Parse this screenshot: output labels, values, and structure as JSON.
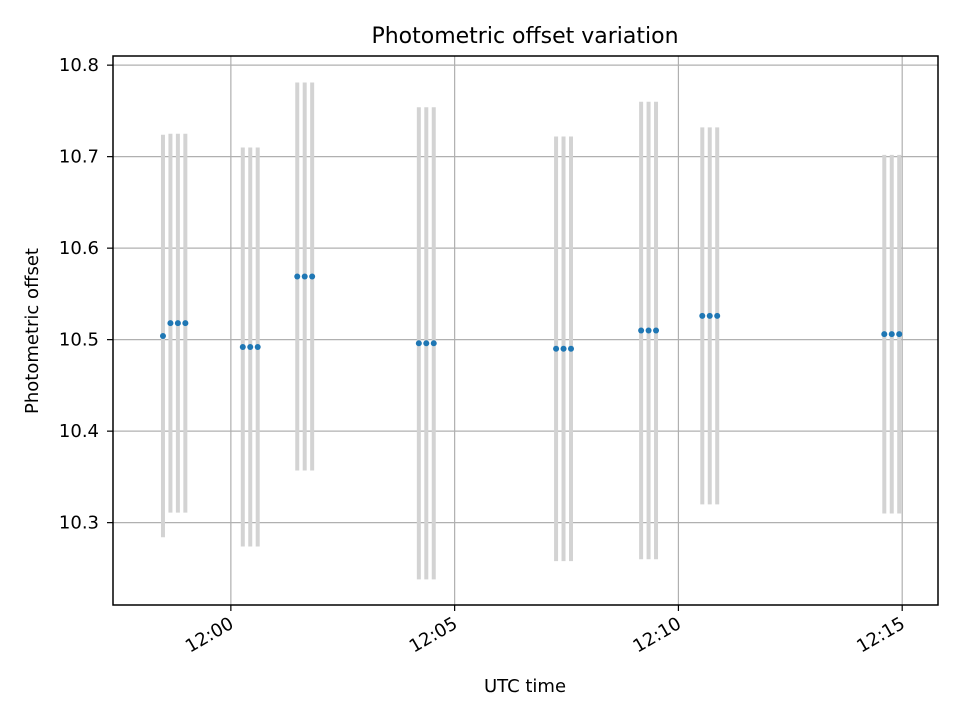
{
  "chart_data": {
    "type": "scatter",
    "title": "Photometric offset variation",
    "xlabel": "UTC time",
    "ylabel": "Photometric offset",
    "xlim": [
      "11:57:22",
      "12:15:48"
    ],
    "ylim": [
      10.21,
      10.81
    ],
    "xticks": [
      "12:00",
      "12:05",
      "12:10",
      "12:15"
    ],
    "yticks": [
      "10.3",
      "10.4",
      "10.5",
      "10.6",
      "10.7",
      "10.8"
    ],
    "grid": true,
    "point_color": "#1f77b4",
    "errorbar_color": "#d3d3d3",
    "points": [
      {
        "t": "11:58:29",
        "y": 10.504,
        "err": 0.22
      },
      {
        "t": "11:58:39",
        "y": 10.518,
        "err": 0.207
      },
      {
        "t": "11:58:49",
        "y": 10.518,
        "err": 0.207
      },
      {
        "t": "11:58:59",
        "y": 10.518,
        "err": 0.207
      },
      {
        "t": "12:00:16",
        "y": 10.492,
        "err": 0.218
      },
      {
        "t": "12:00:26",
        "y": 10.492,
        "err": 0.218
      },
      {
        "t": "12:00:36",
        "y": 10.492,
        "err": 0.218
      },
      {
        "t": "12:01:29",
        "y": 10.569,
        "err": 0.212
      },
      {
        "t": "12:01:39",
        "y": 10.569,
        "err": 0.212
      },
      {
        "t": "12:01:49",
        "y": 10.569,
        "err": 0.212
      },
      {
        "t": "12:04:12",
        "y": 10.496,
        "err": 0.258
      },
      {
        "t": "12:04:22",
        "y": 10.496,
        "err": 0.258
      },
      {
        "t": "12:04:32",
        "y": 10.496,
        "err": 0.258
      },
      {
        "t": "12:07:16",
        "y": 10.49,
        "err": 0.232
      },
      {
        "t": "12:07:26",
        "y": 10.49,
        "err": 0.232
      },
      {
        "t": "12:07:36",
        "y": 10.49,
        "err": 0.232
      },
      {
        "t": "12:09:10",
        "y": 10.51,
        "err": 0.25
      },
      {
        "t": "12:09:20",
        "y": 10.51,
        "err": 0.25
      },
      {
        "t": "12:09:30",
        "y": 10.51,
        "err": 0.25
      },
      {
        "t": "12:10:32",
        "y": 10.526,
        "err": 0.206
      },
      {
        "t": "12:10:42",
        "y": 10.526,
        "err": 0.206
      },
      {
        "t": "12:10:52",
        "y": 10.526,
        "err": 0.206
      },
      {
        "t": "12:14:36",
        "y": 10.506,
        "err": 0.196
      },
      {
        "t": "12:14:46",
        "y": 10.506,
        "err": 0.196
      },
      {
        "t": "12:14:56",
        "y": 10.506,
        "err": 0.196
      }
    ]
  }
}
